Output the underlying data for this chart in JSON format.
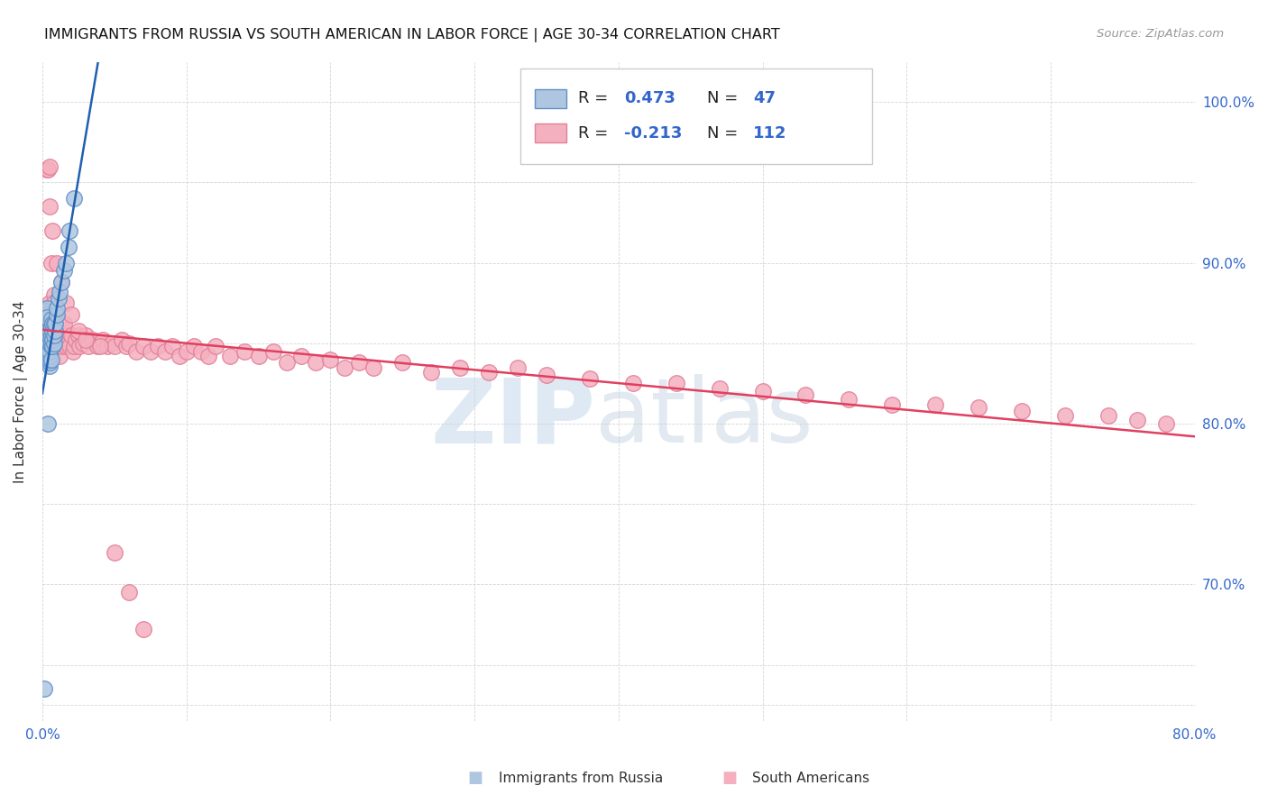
{
  "title": "IMMIGRANTS FROM RUSSIA VS SOUTH AMERICAN IN LABOR FORCE | AGE 30-34 CORRELATION CHART",
  "source": "Source: ZipAtlas.com",
  "ylabel": "In Labor Force | Age 30-34",
  "xlim": [
    0.0,
    0.8
  ],
  "ylim": [
    0.615,
    1.025
  ],
  "russia_R": 0.473,
  "russia_N": 47,
  "south_R": -0.213,
  "south_N": 112,
  "russia_color": "#aec6e0",
  "russia_edge_color": "#6090c8",
  "south_color": "#f5b0c0",
  "south_edge_color": "#e08098",
  "russia_line_color": "#2060b0",
  "south_line_color": "#e04060",
  "legend_russia_label": "Immigrants from Russia",
  "legend_south_label": "South Americans",
  "watermark_zip_color": "#c5d8ea",
  "watermark_atlas_color": "#c0d0e0",
  "russia_x": [
    0.001,
    0.002,
    0.002,
    0.002,
    0.003,
    0.003,
    0.003,
    0.003,
    0.003,
    0.004,
    0.004,
    0.004,
    0.004,
    0.004,
    0.005,
    0.005,
    0.005,
    0.005,
    0.005,
    0.005,
    0.005,
    0.005,
    0.006,
    0.006,
    0.006,
    0.006,
    0.006,
    0.006,
    0.007,
    0.007,
    0.007,
    0.007,
    0.008,
    0.008,
    0.008,
    0.009,
    0.009,
    0.01,
    0.01,
    0.011,
    0.012,
    0.013,
    0.015,
    0.016,
    0.018,
    0.019,
    0.022
  ],
  "russia_y": [
    0.635,
    0.856,
    0.862,
    0.87,
    0.868,
    0.872,
    0.84,
    0.858,
    0.866,
    0.8,
    0.84,
    0.845,
    0.852,
    0.858,
    0.836,
    0.838,
    0.84,
    0.842,
    0.845,
    0.85,
    0.855,
    0.858,
    0.84,
    0.848,
    0.85,
    0.855,
    0.86,
    0.865,
    0.848,
    0.852,
    0.858,
    0.862,
    0.85,
    0.855,
    0.862,
    0.858,
    0.862,
    0.868,
    0.872,
    0.878,
    0.882,
    0.888,
    0.895,
    0.9,
    0.91,
    0.92,
    0.94
  ],
  "south_x": [
    0.002,
    0.003,
    0.003,
    0.004,
    0.004,
    0.005,
    0.005,
    0.005,
    0.006,
    0.006,
    0.006,
    0.006,
    0.007,
    0.007,
    0.007,
    0.008,
    0.008,
    0.008,
    0.008,
    0.009,
    0.009,
    0.009,
    0.01,
    0.01,
    0.011,
    0.011,
    0.012,
    0.012,
    0.013,
    0.013,
    0.014,
    0.015,
    0.015,
    0.016,
    0.017,
    0.018,
    0.019,
    0.02,
    0.021,
    0.022,
    0.023,
    0.025,
    0.026,
    0.028,
    0.03,
    0.032,
    0.035,
    0.038,
    0.04,
    0.042,
    0.045,
    0.048,
    0.05,
    0.055,
    0.058,
    0.06,
    0.065,
    0.07,
    0.075,
    0.08,
    0.085,
    0.09,
    0.095,
    0.1,
    0.105,
    0.11,
    0.115,
    0.12,
    0.13,
    0.14,
    0.15,
    0.16,
    0.17,
    0.18,
    0.19,
    0.2,
    0.21,
    0.22,
    0.23,
    0.25,
    0.27,
    0.29,
    0.31,
    0.33,
    0.35,
    0.38,
    0.41,
    0.44,
    0.47,
    0.5,
    0.53,
    0.56,
    0.59,
    0.62,
    0.65,
    0.68,
    0.71,
    0.74,
    0.76,
    0.78,
    0.005,
    0.007,
    0.01,
    0.013,
    0.016,
    0.02,
    0.025,
    0.03,
    0.04,
    0.05,
    0.06,
    0.07
  ],
  "south_y": [
    0.862,
    0.958,
    0.855,
    0.958,
    0.872,
    0.96,
    0.875,
    0.855,
    0.9,
    0.858,
    0.862,
    0.848,
    0.87,
    0.852,
    0.862,
    0.88,
    0.855,
    0.862,
    0.875,
    0.858,
    0.862,
    0.87,
    0.848,
    0.858,
    0.85,
    0.862,
    0.842,
    0.855,
    0.848,
    0.862,
    0.85,
    0.855,
    0.862,
    0.848,
    0.852,
    0.85,
    0.848,
    0.855,
    0.845,
    0.848,
    0.852,
    0.855,
    0.848,
    0.85,
    0.855,
    0.848,
    0.852,
    0.848,
    0.85,
    0.852,
    0.848,
    0.85,
    0.848,
    0.852,
    0.848,
    0.85,
    0.845,
    0.848,
    0.845,
    0.848,
    0.845,
    0.848,
    0.842,
    0.845,
    0.848,
    0.845,
    0.842,
    0.848,
    0.842,
    0.845,
    0.842,
    0.845,
    0.838,
    0.842,
    0.838,
    0.84,
    0.835,
    0.838,
    0.835,
    0.838,
    0.832,
    0.835,
    0.832,
    0.835,
    0.83,
    0.828,
    0.825,
    0.825,
    0.822,
    0.82,
    0.818,
    0.815,
    0.812,
    0.812,
    0.81,
    0.808,
    0.805,
    0.805,
    0.802,
    0.8,
    0.935,
    0.92,
    0.9,
    0.888,
    0.875,
    0.868,
    0.858,
    0.852,
    0.848,
    0.72,
    0.695,
    0.672
  ]
}
